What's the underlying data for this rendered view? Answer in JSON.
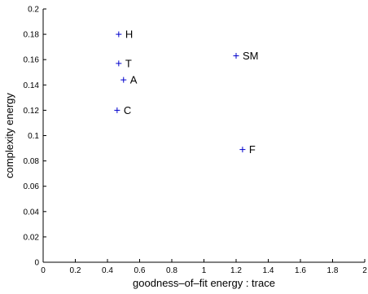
{
  "chart_data": {
    "type": "scatter",
    "title": "",
    "xlabel": "goodness–of–fit energy : trace",
    "ylabel": "complexity energy",
    "xlim": [
      0,
      2
    ],
    "ylim": [
      0,
      0.2
    ],
    "xticks": [
      "0",
      "0.2",
      "0.4",
      "0.6",
      "0.8",
      "1",
      "1.2",
      "1.4",
      "1.6",
      "1.8",
      "2"
    ],
    "yticks": [
      "0",
      "0.02",
      "0.04",
      "0.06",
      "0.08",
      "0.1",
      "0.12",
      "0.14",
      "0.16",
      "0.18",
      "0.2"
    ],
    "grid": false,
    "marker": "+",
    "marker_color": "#0000cc",
    "points": [
      {
        "label": "H",
        "x": 0.47,
        "y": 0.18
      },
      {
        "label": "T",
        "x": 0.47,
        "y": 0.157
      },
      {
        "label": "A",
        "x": 0.5,
        "y": 0.144
      },
      {
        "label": "C",
        "x": 0.46,
        "y": 0.12
      },
      {
        "label": "SM",
        "x": 1.2,
        "y": 0.163
      },
      {
        "label": "F",
        "x": 1.24,
        "y": 0.089
      }
    ]
  }
}
